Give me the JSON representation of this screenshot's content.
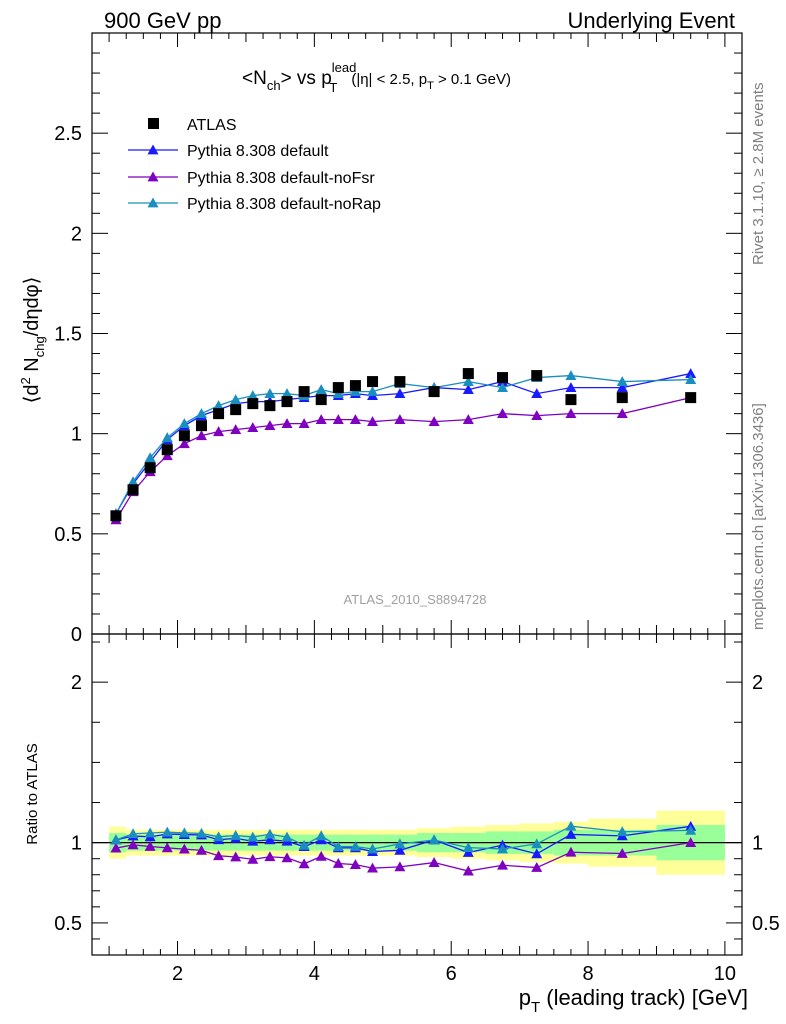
{
  "header": {
    "left": "900 GeV pp",
    "right": "Underlying Event"
  },
  "side_labels": {
    "rivet": "Rivet 3.1.10, ≥ 2.8M events",
    "mcplots": "mcplots.cern.ch [arXiv:1306.3436]"
  },
  "chart_data": {
    "type": "scatter",
    "title_parts": {
      "lhs": "<N",
      "lhs_sub": "ch",
      "mid": "> vs p",
      "mid_sup": "lead",
      "mid_sub": "T",
      "cond_a": "(|η| < 2.5, p",
      "cond_sub": "T",
      "cond_b": " > 0.1 GeV)"
    },
    "analysis_label": "ATLAS_2010_S8894728",
    "xlabel_main": "p",
    "xlabel_sub": "T",
    "xlabel_rest": " (leading track) [GeV]",
    "ylabel_top_parts": {
      "a": "⟨d",
      "sup": "2",
      "b": " N",
      "sub": "chg",
      "c": "/dηdφ⟩"
    },
    "ylabel_bottom": "Ratio to ATLAS",
    "xlim": [
      0.75,
      10.25
    ],
    "ylim_top": [
      0,
      3.0
    ],
    "ylim_bottom": [
      0.3,
      2.3
    ],
    "x_ticks": [
      "2",
      "4",
      "6",
      "8",
      "10"
    ],
    "y_ticks_top": [
      "0",
      "0.5",
      "1",
      "1.5",
      "2",
      "2.5"
    ],
    "y_ticks_bottom": [
      "0.5",
      "1",
      "2"
    ],
    "legend": [
      {
        "name": "ATLAS",
        "color": "#000000",
        "marker": "square"
      },
      {
        "name": "Pythia 8.308 default",
        "color": "#1a1aff",
        "marker": "triangle"
      },
      {
        "name": "Pythia 8.308 default-noFsr",
        "color": "#7f00bf",
        "marker": "triangle"
      },
      {
        "name": "Pythia 8.308 default-noRap",
        "color": "#1a8fbf",
        "marker": "triangle"
      }
    ],
    "x": [
      1.1,
      1.35,
      1.6,
      1.85,
      2.1,
      2.35,
      2.6,
      2.85,
      3.1,
      3.35,
      3.6,
      3.85,
      4.1,
      4.35,
      4.6,
      4.85,
      5.25,
      5.75,
      6.25,
      6.75,
      7.25,
      7.75,
      8.5,
      9.5
    ],
    "atlas": [
      0.59,
      0.72,
      0.83,
      0.92,
      0.99,
      1.04,
      1.1,
      1.12,
      1.15,
      1.14,
      1.16,
      1.21,
      1.17,
      1.23,
      1.24,
      1.26,
      1.26,
      1.21,
      1.3,
      1.28,
      1.29,
      1.17,
      1.18,
      1.18
    ],
    "series": [
      {
        "name": "Pythia 8.308 default",
        "values": [
          0.6,
          0.75,
          0.86,
          0.97,
          1.04,
          1.09,
          1.12,
          1.15,
          1.16,
          1.16,
          1.17,
          1.18,
          1.19,
          1.19,
          1.2,
          1.19,
          1.2,
          1.23,
          1.22,
          1.26,
          1.2,
          1.23,
          1.23,
          1.3
        ]
      },
      {
        "name": "Pythia 8.308 default-noFsr",
        "values": [
          0.57,
          0.71,
          0.81,
          0.89,
          0.95,
          0.99,
          1.01,
          1.02,
          1.03,
          1.04,
          1.05,
          1.05,
          1.07,
          1.07,
          1.07,
          1.06,
          1.07,
          1.06,
          1.07,
          1.1,
          1.09,
          1.1,
          1.1,
          1.18
        ]
      },
      {
        "name": "Pythia 8.308 default-noRap",
        "values": [
          0.6,
          0.76,
          0.88,
          0.98,
          1.05,
          1.1,
          1.14,
          1.17,
          1.19,
          1.2,
          1.2,
          1.19,
          1.22,
          1.2,
          1.21,
          1.21,
          1.25,
          1.23,
          1.26,
          1.23,
          1.28,
          1.29,
          1.26,
          1.27
        ]
      }
    ],
    "ratio_bands": {
      "edges": [
        1.0,
        1.25,
        1.5,
        1.75,
        2.0,
        2.25,
        2.5,
        2.75,
        3.0,
        3.25,
        3.5,
        3.75,
        4.0,
        4.25,
        4.5,
        4.75,
        5.0,
        5.5,
        6.0,
        6.5,
        7.0,
        7.5,
        8.0,
        9.0,
        10.0
      ],
      "inner": [
        0.06,
        0.05,
        0.05,
        0.05,
        0.05,
        0.05,
        0.05,
        0.05,
        0.05,
        0.05,
        0.05,
        0.05,
        0.05,
        0.05,
        0.05,
        0.05,
        0.05,
        0.06,
        0.06,
        0.07,
        0.07,
        0.08,
        0.08,
        0.11
      ],
      "outer": [
        0.1,
        0.08,
        0.08,
        0.08,
        0.08,
        0.08,
        0.08,
        0.08,
        0.08,
        0.08,
        0.08,
        0.08,
        0.08,
        0.08,
        0.08,
        0.08,
        0.08,
        0.09,
        0.1,
        0.11,
        0.12,
        0.13,
        0.15,
        0.2
      ],
      "inner_color": "#99ff99",
      "outer_color": "#ffff99"
    }
  }
}
